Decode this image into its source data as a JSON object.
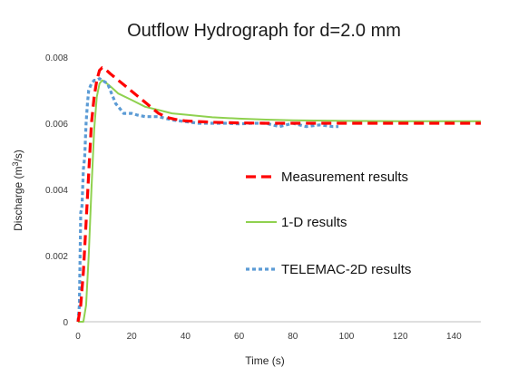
{
  "chart_data": {
    "type": "line",
    "title": "Outflow Hydrograph for d=2.0 mm",
    "xlabel": "Time (s)",
    "ylabel_main": "Discharge (m",
    "ylabel_sup": "3",
    "ylabel_end": "/s)",
    "xlim": [
      0,
      150
    ],
    "ylim": [
      0,
      0.008
    ],
    "x_ticks": [
      0,
      20,
      40,
      60,
      80,
      100,
      120,
      140
    ],
    "y_ticks": [
      0,
      0.002,
      0.004,
      0.006,
      0.008
    ],
    "x_tick_labels": [
      "0",
      "20",
      "40",
      "60",
      "80",
      "100",
      "120",
      "140"
    ],
    "y_tick_labels": [
      "0",
      "0.002",
      "0.004",
      "0.006",
      "0.008"
    ],
    "grid": false,
    "legend_position": "center-right",
    "series": [
      {
        "name": "Measurement results",
        "color": "#ff0000",
        "dash": "dashed",
        "x": [
          0,
          1,
          2,
          3,
          4,
          5,
          6,
          7,
          8,
          9,
          10,
          12,
          15,
          18,
          21,
          24,
          27,
          30,
          33,
          36,
          40,
          50,
          60,
          70,
          80,
          90,
          100,
          110,
          120,
          130,
          140,
          150
        ],
        "y": [
          0,
          0.0005,
          0.0015,
          0.003,
          0.0045,
          0.006,
          0.0068,
          0.0073,
          0.0076,
          0.00768,
          0.00765,
          0.0075,
          0.0073,
          0.0071,
          0.0069,
          0.0067,
          0.0065,
          0.0063,
          0.00618,
          0.00612,
          0.00607,
          0.00603,
          0.00601,
          0.006,
          0.006,
          0.006,
          0.006,
          0.006,
          0.006,
          0.006,
          0.006,
          0.006
        ]
      },
      {
        "name": "1-D results",
        "color": "#8fd14f",
        "dash": "solid",
        "x": [
          0,
          2,
          3,
          4,
          5,
          6,
          7,
          8,
          9,
          10,
          12,
          15,
          20,
          25,
          30,
          35,
          40,
          50,
          60,
          70,
          80,
          100,
          120,
          150
        ],
        "y": [
          0,
          0,
          0.0005,
          0.002,
          0.004,
          0.0058,
          0.0068,
          0.0072,
          0.0073,
          0.00725,
          0.00712,
          0.0069,
          0.0067,
          0.0065,
          0.0064,
          0.0063,
          0.00626,
          0.00618,
          0.00614,
          0.00611,
          0.00609,
          0.00607,
          0.00606,
          0.00606
        ]
      },
      {
        "name": "TELEMAC-2D results",
        "color": "#5b9bd5",
        "dash": "dotted",
        "x": [
          0,
          0.5,
          1,
          1.5,
          2,
          2.5,
          3,
          3.5,
          4,
          5,
          6,
          7,
          8,
          9,
          10,
          11,
          12,
          13,
          14,
          15,
          16,
          17,
          18,
          20,
          22,
          25,
          30,
          35,
          40,
          45,
          50,
          55,
          60,
          65,
          70,
          75,
          80,
          85,
          90,
          95,
          97
        ],
        "y": [
          0,
          0.0005,
          0.0033,
          0.0035,
          0.0046,
          0.005,
          0.006,
          0.0066,
          0.007,
          0.0072,
          0.0073,
          0.0073,
          0.00735,
          0.0073,
          0.00725,
          0.0072,
          0.007,
          0.0068,
          0.0066,
          0.0065,
          0.0064,
          0.0063,
          0.0063,
          0.0063,
          0.00625,
          0.0062,
          0.0062,
          0.0061,
          0.00605,
          0.006,
          0.006,
          0.006,
          0.00598,
          0.006,
          0.006,
          0.0059,
          0.006,
          0.0059,
          0.00595,
          0.0059,
          0.0059
        ]
      }
    ]
  }
}
